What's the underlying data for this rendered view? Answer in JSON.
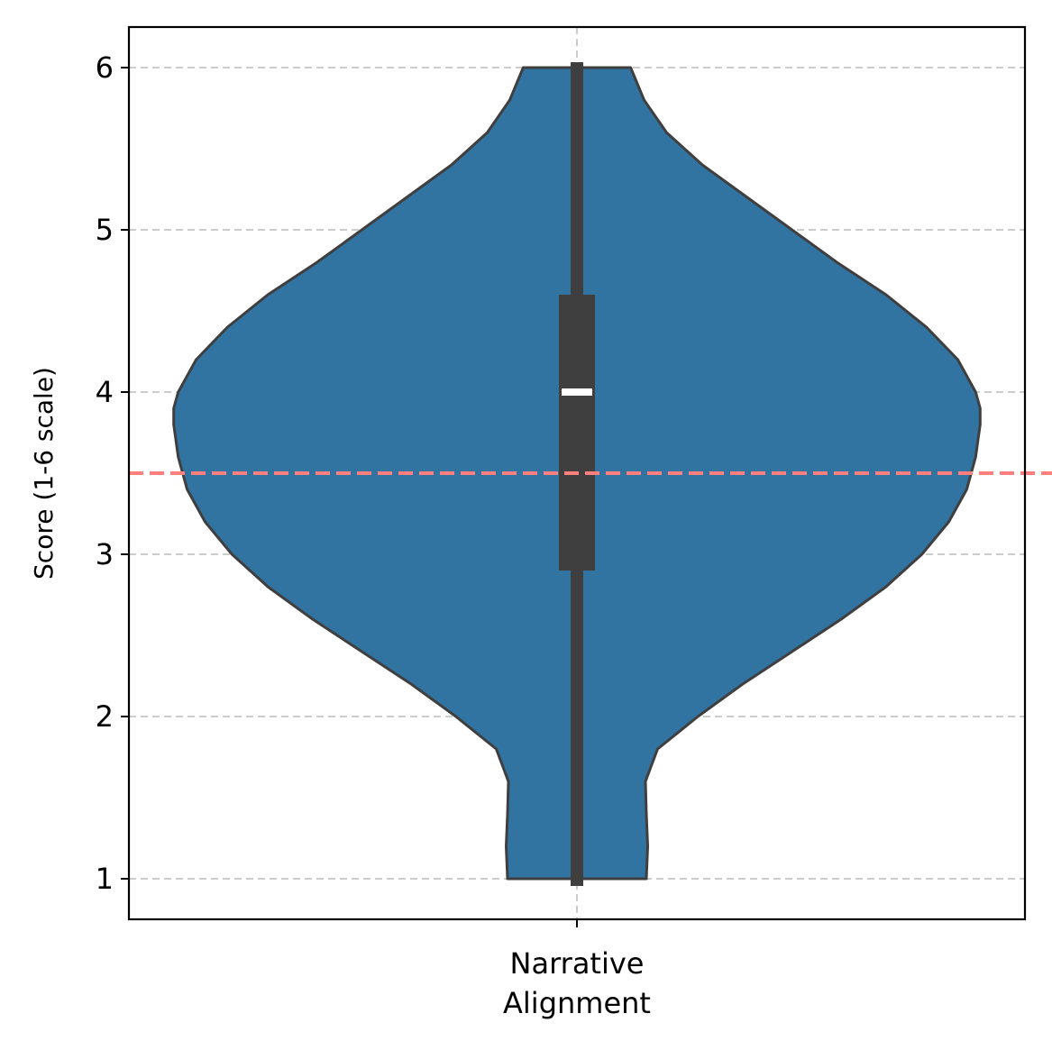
{
  "chart_data": {
    "type": "violin",
    "categories": [
      "Narrative\nAlignment"
    ],
    "xlabel": "",
    "ylabel": "Score (1-6 scale)",
    "ylim": [
      0.75,
      6.25
    ],
    "yticks": [
      1,
      2,
      3,
      4,
      5,
      6
    ],
    "grid": true,
    "colors": {
      "violin_fill": "#3274a1",
      "outline": "#3f3f3f",
      "box": "#3f3f3f",
      "median": "#ffffff",
      "reference_line": "#ff7f7f",
      "grid": "#cccccc"
    },
    "violin": {
      "min": 1,
      "q1": 2.9,
      "median": 4.0,
      "q3": 4.6,
      "max": 6,
      "density_profile": [
        {
          "y": 1.0,
          "half_width": 0.155
        },
        {
          "y": 1.2,
          "half_width": 0.158
        },
        {
          "y": 1.4,
          "half_width": 0.155
        },
        {
          "y": 1.6,
          "half_width": 0.153
        },
        {
          "y": 1.8,
          "half_width": 0.18
        },
        {
          "y": 2.0,
          "half_width": 0.27
        },
        {
          "y": 2.2,
          "half_width": 0.37
        },
        {
          "y": 2.4,
          "half_width": 0.48
        },
        {
          "y": 2.6,
          "half_width": 0.59
        },
        {
          "y": 2.8,
          "half_width": 0.69
        },
        {
          "y": 3.0,
          "half_width": 0.77
        },
        {
          "y": 3.2,
          "half_width": 0.83
        },
        {
          "y": 3.4,
          "half_width": 0.87
        },
        {
          "y": 3.6,
          "half_width": 0.89
        },
        {
          "y": 3.8,
          "half_width": 0.9
        },
        {
          "y": 3.9,
          "half_width": 0.9
        },
        {
          "y": 4.0,
          "half_width": 0.89
        },
        {
          "y": 4.2,
          "half_width": 0.85
        },
        {
          "y": 4.4,
          "half_width": 0.78
        },
        {
          "y": 4.6,
          "half_width": 0.69
        },
        {
          "y": 4.8,
          "half_width": 0.58
        },
        {
          "y": 5.0,
          "half_width": 0.48
        },
        {
          "y": 5.2,
          "half_width": 0.38
        },
        {
          "y": 5.4,
          "half_width": 0.28
        },
        {
          "y": 5.6,
          "half_width": 0.2
        },
        {
          "y": 5.8,
          "half_width": 0.15
        },
        {
          "y": 6.0,
          "half_width": 0.12
        }
      ]
    },
    "reference_line": {
      "y": 3.5,
      "style": "dashed"
    }
  }
}
